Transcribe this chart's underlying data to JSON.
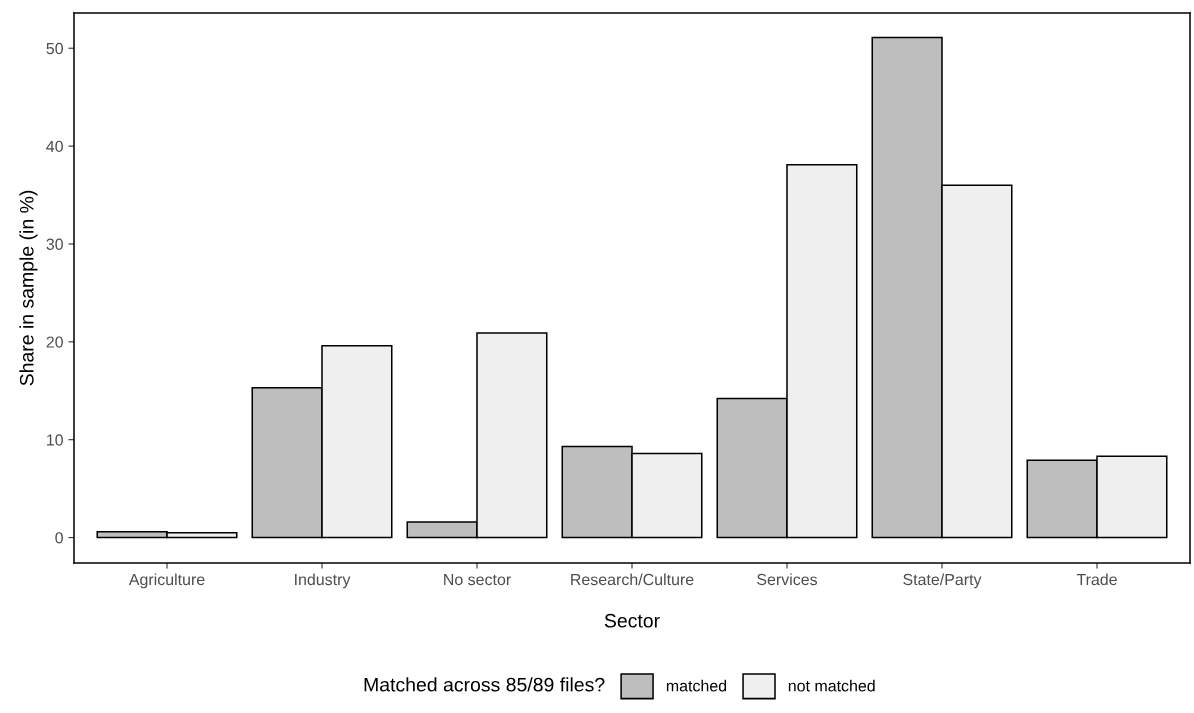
{
  "chart_data": {
    "type": "bar",
    "xlabel": "Sector",
    "ylabel": "Share in sample (in %)",
    "legend_title": "Matched across 85/89 files?",
    "categories": [
      "Agriculture",
      "Industry",
      "No sector",
      "Research/Culture",
      "Services",
      "State/Party",
      "Trade"
    ],
    "series": [
      {
        "name": "matched",
        "color": "#bebebe",
        "values": [
          0.6,
          15.3,
          1.6,
          9.3,
          14.2,
          51.1,
          7.9
        ]
      },
      {
        "name": "not matched",
        "color": "#efefef",
        "values": [
          0.5,
          19.6,
          20.9,
          8.6,
          38.1,
          36.0,
          8.3
        ]
      }
    ],
    "ylim": [
      -2.6,
      53.6
    ],
    "yticks": [
      0,
      10,
      20,
      30,
      40,
      50
    ],
    "grid": false,
    "legend": "bottom"
  }
}
